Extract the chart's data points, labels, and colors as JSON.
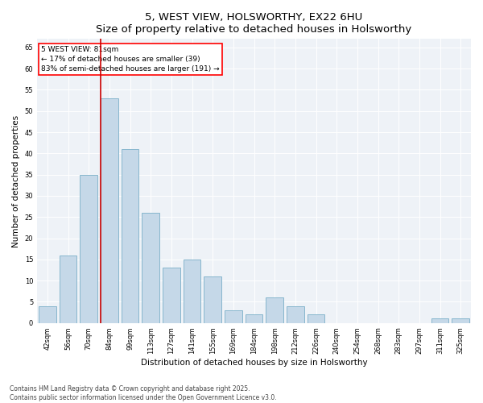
{
  "title": "5, WEST VIEW, HOLSWORTHY, EX22 6HU",
  "subtitle": "Size of property relative to detached houses in Holsworthy",
  "xlabel": "Distribution of detached houses by size in Holsworthy",
  "ylabel": "Number of detached properties",
  "categories": [
    "42sqm",
    "56sqm",
    "70sqm",
    "84sqm",
    "99sqm",
    "113sqm",
    "127sqm",
    "141sqm",
    "155sqm",
    "169sqm",
    "184sqm",
    "198sqm",
    "212sqm",
    "226sqm",
    "240sqm",
    "254sqm",
    "268sqm",
    "283sqm",
    "297sqm",
    "311sqm",
    "325sqm"
  ],
  "values": [
    4,
    16,
    35,
    53,
    41,
    26,
    13,
    15,
    11,
    3,
    2,
    6,
    4,
    2,
    0,
    0,
    0,
    0,
    0,
    1,
    1
  ],
  "bar_color": "#c5d8e8",
  "bar_edge_color": "#7aafc8",
  "red_line_index": 3,
  "annotation_line1": "5 WEST VIEW: 81sqm",
  "annotation_line2": "← 17% of detached houses are smaller (39)",
  "annotation_line3": "83% of semi-detached houses are larger (191) →",
  "annotation_box_color": "white",
  "annotation_box_edge": "red",
  "red_line_color": "#cc0000",
  "ylim": [
    0,
    67
  ],
  "yticks": [
    0,
    5,
    10,
    15,
    20,
    25,
    30,
    35,
    40,
    45,
    50,
    55,
    60,
    65
  ],
  "background_color": "#eef2f7",
  "footer_line1": "Contains HM Land Registry data © Crown copyright and database right 2025.",
  "footer_line2": "Contains public sector information licensed under the Open Government Licence v3.0.",
  "title_fontsize": 9.5,
  "subtitle_fontsize": 8,
  "tick_fontsize": 6,
  "xlabel_fontsize": 7.5,
  "ylabel_fontsize": 7.5,
  "footer_fontsize": 5.5,
  "annotation_fontsize": 6.5
}
